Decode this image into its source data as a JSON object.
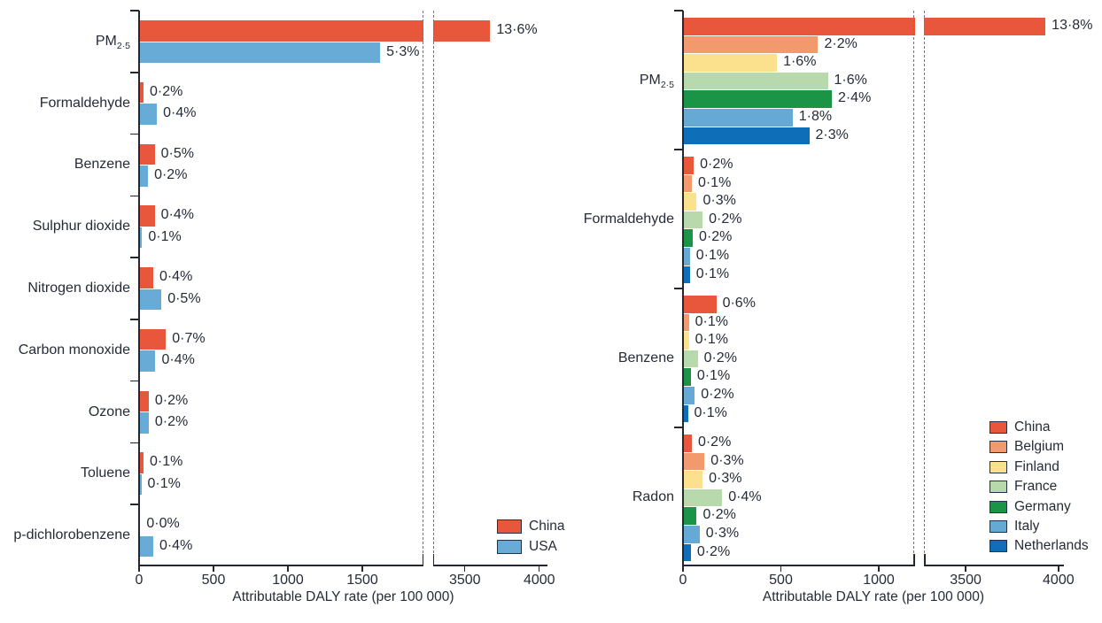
{
  "figure": {
    "background": "#ffffff",
    "ink_color": "#262b38",
    "dashed_break_line_color": "#64798c"
  },
  "chart_data": [
    {
      "type": "bar",
      "orientation": "horizontal",
      "title": "",
      "xlabel": "Attributable DALY rate (per 100 000)",
      "x_ticks": [
        0,
        500,
        1000,
        1500,
        3500,
        4000
      ],
      "xlim": [
        0,
        4200
      ],
      "axis_break": {
        "shown": true,
        "between_ticks": [
          1500,
          3500
        ]
      },
      "grid": false,
      "legend_position": "inside-bottom-right",
      "categories": [
        {
          "text": "PM",
          "sub": "2·5"
        },
        {
          "text": "Formaldehyde",
          "sub": ""
        },
        {
          "text": "Benzene",
          "sub": ""
        },
        {
          "text": "Sulphur dioxide",
          "sub": ""
        },
        {
          "text": "Nitrogen dioxide",
          "sub": ""
        },
        {
          "text": "Carbon monoxide",
          "sub": ""
        },
        {
          "text": "Ozone",
          "sub": ""
        },
        {
          "text": "Toluene",
          "sub": ""
        },
        {
          "text": "p-dichlorobenzene",
          "sub": ""
        }
      ],
      "series": [
        {
          "name": "China",
          "color": "#e8573c",
          "values": [
            3670,
            30,
            105,
            105,
            95,
            180,
            65,
            30,
            8
          ],
          "labels": [
            "13·6%",
            "0·2%",
            "0·5%",
            "0·4%",
            "0·4%",
            "0·7%",
            "0·2%",
            "0·1%",
            "0·0%"
          ]
        },
        {
          "name": "USA",
          "color": "#68abd6",
          "values": [
            1620,
            120,
            60,
            20,
            150,
            110,
            65,
            15,
            95
          ],
          "labels": [
            "5·3%",
            "0·4%",
            "0·2%",
            "0·1%",
            "0·5%",
            "0·4%",
            "0·2%",
            "0·1%",
            "0·4%"
          ]
        }
      ]
    },
    {
      "type": "bar",
      "orientation": "horizontal",
      "title": "",
      "xlabel": "Attributable DALY rate (per 100 000)",
      "x_ticks": [
        0,
        500,
        1000,
        3500,
        4000
      ],
      "xlim": [
        0,
        4200
      ],
      "axis_break": {
        "shown": true,
        "between_ticks": [
          1000,
          3500
        ]
      },
      "grid": false,
      "legend_position": "inside-right",
      "categories": [
        {
          "text": "PM",
          "sub": "2·5"
        },
        {
          "text": "Formaldehyde",
          "sub": ""
        },
        {
          "text": "Benzene",
          "sub": ""
        },
        {
          "text": "Radon",
          "sub": ""
        }
      ],
      "series": [
        {
          "name": "China",
          "color": "#e8573c",
          "values": [
            3930,
            55,
            170,
            45
          ],
          "labels": [
            "13·8%",
            "0·2%",
            "0·6%",
            "0·2%"
          ]
        },
        {
          "name": "Belgium",
          "color": "#f29a6e",
          "values": [
            690,
            45,
            30,
            110
          ],
          "labels": [
            "2·2%",
            "0·1%",
            "0·1%",
            "0·3%"
          ]
        },
        {
          "name": "Finland",
          "color": "#fbe08e",
          "values": [
            480,
            70,
            30,
            100
          ],
          "labels": [
            "1·6%",
            "0·3%",
            "0·1%",
            "0·3%"
          ]
        },
        {
          "name": "France",
          "color": "#b8d9ab",
          "values": [
            740,
            100,
            75,
            200
          ],
          "labels": [
            "1·6%",
            "0·2%",
            "0·2%",
            "0·4%"
          ]
        },
        {
          "name": "Germany",
          "color": "#1b9448",
          "values": [
            760,
            50,
            40,
            70
          ],
          "labels": [
            "2·4%",
            "0·2%",
            "0·1%",
            "0·2%"
          ]
        },
        {
          "name": "Italy",
          "color": "#66a9d4",
          "values": [
            560,
            35,
            60,
            85
          ],
          "labels": [
            "1·8%",
            "0·1%",
            "0·2%",
            "0·3%"
          ]
        },
        {
          "name": "Netherlands",
          "color": "#0e6eb8",
          "values": [
            645,
            35,
            25,
            40
          ],
          "labels": [
            "2·3%",
            "0·1%",
            "0·1%",
            "0·2%"
          ]
        }
      ]
    }
  ]
}
